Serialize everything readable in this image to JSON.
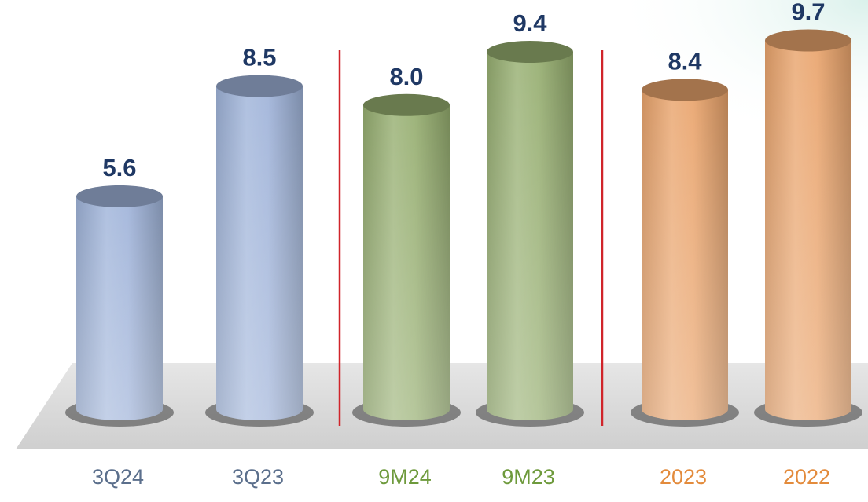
{
  "chart_data": {
    "type": "bar",
    "style": "3d-cylinder",
    "categories": [
      "3Q24",
      "3Q23",
      "9M24",
      "9M23",
      "2023",
      "2022"
    ],
    "values": [
      5.6,
      8.5,
      8.0,
      9.4,
      8.4,
      9.7
    ],
    "value_labels": [
      "5.6",
      "8.5",
      "8.0",
      "9.4",
      "8.4",
      "9.7"
    ],
    "groups": [
      {
        "categories": [
          "3Q24",
          "3Q23"
        ],
        "color": "#9fb3d9",
        "label_color": "#5b6f8c"
      },
      {
        "categories": [
          "9M24",
          "9M23"
        ],
        "color": "#96ae70",
        "label_color": "#6e9a3c"
      },
      {
        "categories": [
          "2023",
          "2022"
        ],
        "color": "#e9a46c",
        "label_color": "#e38b3c"
      }
    ],
    "value_label_color": "#1f3864",
    "separator_color": "#d0242a",
    "ylim": [
      0,
      10
    ],
    "title": "",
    "xlabel": "",
    "ylabel": "",
    "grid": false,
    "legend": "none"
  }
}
